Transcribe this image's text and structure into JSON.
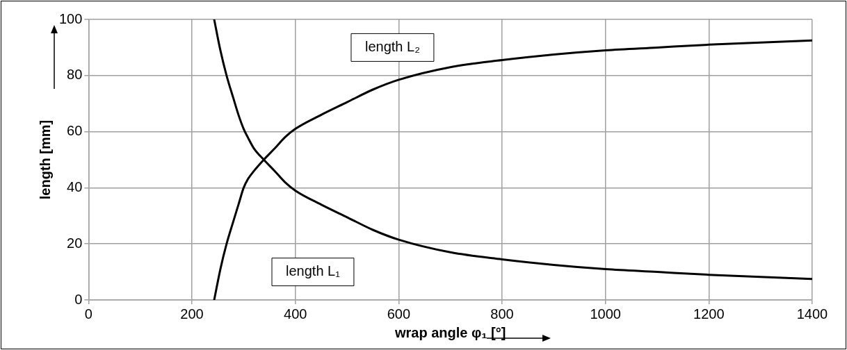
{
  "chart_data": {
    "type": "line",
    "xlabel": "wrap angle φ₁ [°]",
    "ylabel": "length [mm]",
    "xlim": [
      0,
      1400
    ],
    "xticks": [
      0,
      200,
      400,
      600,
      800,
      1000,
      1200,
      1400
    ],
    "ylim": [
      0,
      100
    ],
    "yticks": [
      0,
      20,
      40,
      60,
      80,
      100
    ],
    "grid": true,
    "legend": false,
    "marker": "none",
    "line_style": "solid",
    "series": [
      {
        "color": "#000000",
        "x": [
          243,
          255,
          267,
          280,
          290,
          300,
          308,
          320,
          339,
          360,
          380,
          400,
          450,
          500,
          550,
          600,
          700,
          800,
          900,
          1000,
          1100,
          1200,
          1300,
          1400
        ],
        "values": [
          100,
          89,
          80,
          72,
          66,
          61,
          58,
          54,
          50,
          46,
          42,
          39,
          34,
          29.5,
          25,
          21.5,
          17,
          14.5,
          12.5,
          11,
          10,
          9,
          8.2,
          7.5
        ]
      },
      {
        "color": "#000000",
        "x": [
          243,
          255,
          267,
          280,
          290,
          300,
          308,
          320,
          339,
          360,
          380,
          400,
          450,
          500,
          550,
          600,
          700,
          800,
          900,
          1000,
          1100,
          1200,
          1300,
          1400
        ],
        "values": [
          0,
          11,
          20,
          28,
          34,
          40,
          43,
          46,
          50,
          54,
          58,
          61,
          66,
          70.5,
          75,
          78.5,
          83,
          85.5,
          87.5,
          89,
          90,
          91,
          91.8,
          92.5
        ]
      }
    ],
    "annotations": [
      "length L₂",
      "length L₁"
    ]
  }
}
